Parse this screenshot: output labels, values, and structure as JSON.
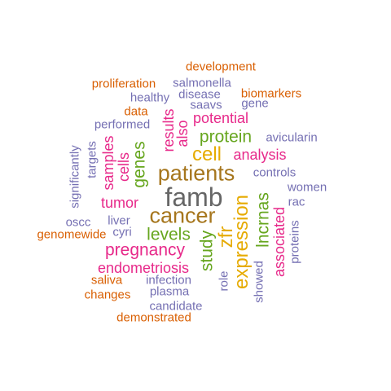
{
  "colors": {
    "orange": "#d95f02",
    "purple": "#7570b3",
    "magenta": "#e7298a",
    "green": "#66a61e",
    "gold": "#e6ab02",
    "brown": "#a6761d",
    "gray": "#666666"
  },
  "words": [
    {
      "text": "development",
      "color": "#d95f02",
      "weight": 1,
      "vertical": false
    },
    {
      "text": "proliferation",
      "color": "#d95f02",
      "weight": 1,
      "vertical": false
    },
    {
      "text": "salmonella",
      "color": "#7570b3",
      "weight": 1,
      "vertical": false
    },
    {
      "text": "disease",
      "color": "#7570b3",
      "weight": 1,
      "vertical": false
    },
    {
      "text": "biomarkers",
      "color": "#d95f02",
      "weight": 1,
      "vertical": false
    },
    {
      "text": "healthy",
      "color": "#7570b3",
      "weight": 1,
      "vertical": false
    },
    {
      "text": "saavs",
      "color": "#7570b3",
      "weight": 1,
      "vertical": false
    },
    {
      "text": "gene",
      "color": "#7570b3",
      "weight": 1,
      "vertical": false
    },
    {
      "text": "data",
      "color": "#d95f02",
      "weight": 1,
      "vertical": false
    },
    {
      "text": "potential",
      "color": "#e7298a",
      "weight": 2,
      "vertical": false
    },
    {
      "text": "performed",
      "color": "#7570b3",
      "weight": 1,
      "vertical": false
    },
    {
      "text": "results",
      "color": "#e7298a",
      "weight": 2,
      "vertical": true
    },
    {
      "text": "also",
      "color": "#e7298a",
      "weight": 2,
      "vertical": true
    },
    {
      "text": "protein",
      "color": "#66a61e",
      "weight": 3,
      "vertical": false
    },
    {
      "text": "avicularin",
      "color": "#7570b3",
      "weight": 1,
      "vertical": false
    },
    {
      "text": "significantly",
      "color": "#7570b3",
      "weight": 1,
      "vertical": true
    },
    {
      "text": "targets",
      "color": "#7570b3",
      "weight": 1,
      "vertical": true
    },
    {
      "text": "samples",
      "color": "#e7298a",
      "weight": 2,
      "vertical": true
    },
    {
      "text": "cells",
      "color": "#e7298a",
      "weight": 2,
      "vertical": true
    },
    {
      "text": "genes",
      "color": "#66a61e",
      "weight": 3,
      "vertical": true
    },
    {
      "text": "cell",
      "color": "#e6ab02",
      "weight": 4,
      "vertical": false
    },
    {
      "text": "analysis",
      "color": "#e7298a",
      "weight": 2,
      "vertical": false
    },
    {
      "text": "patients",
      "color": "#a6761d",
      "weight": 5,
      "vertical": false
    },
    {
      "text": "controls",
      "color": "#7570b3",
      "weight": 1,
      "vertical": false
    },
    {
      "text": "women",
      "color": "#7570b3",
      "weight": 1,
      "vertical": false
    },
    {
      "text": "famb",
      "color": "#666666",
      "weight": 6,
      "vertical": false
    },
    {
      "text": "expression",
      "color": "#e6ab02",
      "weight": 4,
      "vertical": true
    },
    {
      "text": "lncrnas",
      "color": "#66a61e",
      "weight": 3,
      "vertical": true
    },
    {
      "text": "rac",
      "color": "#7570b3",
      "weight": 1,
      "vertical": false
    },
    {
      "text": "tumor",
      "color": "#e7298a",
      "weight": 2,
      "vertical": false
    },
    {
      "text": "cancer",
      "color": "#a6761d",
      "weight": 5,
      "vertical": false
    },
    {
      "text": "oscc",
      "color": "#7570b3",
      "weight": 1,
      "vertical": false
    },
    {
      "text": "liver",
      "color": "#7570b3",
      "weight": 1,
      "vertical": false
    },
    {
      "text": "associated",
      "color": "#e7298a",
      "weight": 2,
      "vertical": true
    },
    {
      "text": "proteins",
      "color": "#7570b3",
      "weight": 1,
      "vertical": true
    },
    {
      "text": "genomewide",
      "color": "#d95f02",
      "weight": 1,
      "vertical": false
    },
    {
      "text": "cyri",
      "color": "#7570b3",
      "weight": 1,
      "vertical": false
    },
    {
      "text": "levels",
      "color": "#66a61e",
      "weight": 3,
      "vertical": false
    },
    {
      "text": "zfr",
      "color": "#e6ab02",
      "weight": 4,
      "vertical": true
    },
    {
      "text": "study",
      "color": "#66a61e",
      "weight": 3,
      "vertical": true
    },
    {
      "text": "pregnancy",
      "color": "#e7298a",
      "weight": 3,
      "vertical": false
    },
    {
      "text": "endometriosis",
      "color": "#e7298a",
      "weight": 2,
      "vertical": false
    },
    {
      "text": "role",
      "color": "#7570b3",
      "weight": 1,
      "vertical": true
    },
    {
      "text": "showed",
      "color": "#7570b3",
      "weight": 1,
      "vertical": true
    },
    {
      "text": "saliva",
      "color": "#d95f02",
      "weight": 1,
      "vertical": false
    },
    {
      "text": "infection",
      "color": "#7570b3",
      "weight": 1,
      "vertical": false
    },
    {
      "text": "changes",
      "color": "#d95f02",
      "weight": 1,
      "vertical": false
    },
    {
      "text": "plasma",
      "color": "#7570b3",
      "weight": 1,
      "vertical": false
    },
    {
      "text": "candidate",
      "color": "#7570b3",
      "weight": 1,
      "vertical": false
    },
    {
      "text": "demonstrated",
      "color": "#d95f02",
      "weight": 1,
      "vertical": false
    }
  ]
}
